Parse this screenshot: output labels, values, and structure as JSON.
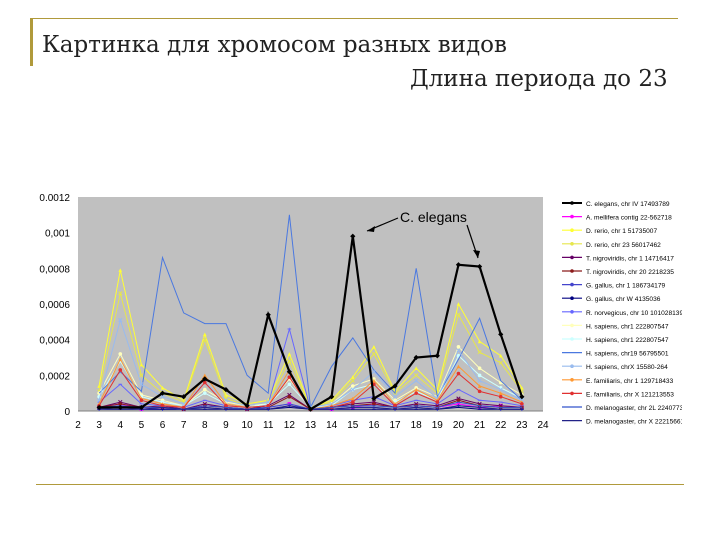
{
  "slide": {
    "title_line1": "Картинка для хромосом разных видов",
    "title_line2": "Длина периода до 23"
  },
  "colors": {
    "frame": "#b09a3b",
    "plot_bg": "#c0c0c0",
    "legend_bg": "#ffffff"
  },
  "chart_data": {
    "type": "line",
    "title": "",
    "xlabel": "",
    "ylabel": "",
    "x": [
      3,
      4,
      5,
      6,
      7,
      8,
      9,
      10,
      11,
      12,
      13,
      14,
      15,
      16,
      17,
      18,
      19,
      20,
      21,
      22,
      23
    ],
    "x_ticks": [
      "2",
      "3",
      "4",
      "5",
      "6",
      "7",
      "8",
      "9",
      "10",
      "11",
      "12",
      "13",
      "14",
      "15",
      "16",
      "17",
      "18",
      "19",
      "20",
      "21",
      "22",
      "23",
      "24"
    ],
    "xlim": [
      2,
      24
    ],
    "ylim": [
      0,
      0.0012
    ],
    "y_ticks": [
      "0",
      "0,0002",
      "0,0004",
      "0,0006",
      "0,0008",
      "0,001",
      "0.0012"
    ],
    "grid": false,
    "legend_position": "right",
    "annotation": "C. elegans",
    "series": [
      {
        "name": "C. elegans, chr IV 17493789",
        "color": "#000000",
        "width": 2.2,
        "marker": "diamond",
        "values": [
          2e-05,
          2e-05,
          2e-05,
          0.0001,
          8e-05,
          0.00018,
          0.00012,
          3e-05,
          0.00054,
          0.00022,
          1e-05,
          8e-05,
          0.00098,
          7e-05,
          0.00014,
          0.0003,
          0.00031,
          0.00082,
          0.00081,
          0.00043,
          8e-05
        ]
      },
      {
        "name": "A. mellifera contig 22-562718",
        "color": "#ff00ff",
        "width": 1,
        "marker": "square",
        "values": [
          2e-05,
          4e-05,
          1e-05,
          2e-05,
          1e-05,
          3e-05,
          2e-05,
          1e-05,
          2e-05,
          4e-05,
          1e-05,
          1e-05,
          2e-05,
          4e-05,
          2e-05,
          3e-05,
          2e-05,
          4e-05,
          2e-05,
          3e-05,
          2e-05
        ]
      },
      {
        "name": "D. rerio, chr 1 51735007",
        "color": "#ffff33",
        "width": 1,
        "marker": "triangle",
        "values": [
          0.00014,
          0.00079,
          0.00026,
          0.00013,
          6e-05,
          0.00043,
          9e-05,
          4e-05,
          6e-05,
          0.00032,
          2e-05,
          6e-05,
          0.00019,
          0.00036,
          0.00011,
          0.00024,
          0.00012,
          0.0006,
          0.00039,
          0.00031,
          0.00013
        ]
      },
      {
        "name": "D. rerio, chr 23 56017462",
        "color": "#e6e64c",
        "width": 1,
        "marker": "x",
        "values": [
          0.00011,
          0.00066,
          0.0002,
          0.0001,
          5e-05,
          0.0004,
          7e-05,
          3e-05,
          5e-05,
          0.00028,
          2e-05,
          5e-05,
          0.00017,
          0.00032,
          0.0001,
          0.0002,
          0.0001,
          0.00054,
          0.00033,
          0.00027,
          0.00011
        ]
      },
      {
        "name": "T. nigroviridis, chr 1 14716417",
        "color": "#660066",
        "width": 1,
        "marker": "x",
        "values": [
          2e-05,
          5e-05,
          2e-05,
          3e-05,
          1e-05,
          4e-05,
          2e-05,
          1e-05,
          3e-05,
          9e-05,
          1e-05,
          2e-05,
          4e-05,
          5e-05,
          2e-05,
          4e-05,
          3e-05,
          7e-05,
          4e-05,
          3e-05,
          2e-05
        ]
      },
      {
        "name": "T. nigroviridis, chr 20 2218235",
        "color": "#8b1a1a",
        "width": 1,
        "marker": "circle",
        "values": [
          2e-05,
          4e-05,
          2e-05,
          2e-05,
          1e-05,
          3e-05,
          2e-05,
          1e-05,
          2e-05,
          8e-05,
          1e-05,
          2e-05,
          3e-05,
          4e-05,
          2e-05,
          3e-05,
          2e-05,
          6e-05,
          3e-05,
          2e-05,
          2e-05
        ]
      },
      {
        "name": "G. gallus, chr 1 186734179",
        "color": "#4444cc",
        "width": 1,
        "marker": "plus",
        "values": [
          1e-05,
          2e-05,
          1e-05,
          1e-05,
          1e-05,
          2e-05,
          1e-05,
          1e-05,
          1e-05,
          3e-05,
          1e-05,
          1e-05,
          2e-05,
          2e-05,
          1e-05,
          2e-05,
          1e-05,
          3e-05,
          2e-05,
          1e-05,
          1e-05
        ]
      },
      {
        "name": "G. gallus, chr W 4135036",
        "color": "#000080",
        "width": 1,
        "marker": "dash",
        "values": [
          1e-05,
          1e-05,
          1e-05,
          1e-05,
          1e-05,
          1e-05,
          1e-05,
          1e-05,
          1e-05,
          2e-05,
          1e-05,
          1e-05,
          1e-05,
          1e-05,
          1e-05,
          1e-05,
          1e-05,
          2e-05,
          1e-05,
          1e-05,
          1e-05
        ]
      },
      {
        "name": "R. norvegicus, chr 10 101028139",
        "color": "#6666ff",
        "width": 1,
        "marker": "dash",
        "values": [
          5e-05,
          0.00015,
          4e-05,
          3e-05,
          2e-05,
          6e-05,
          3e-05,
          2e-05,
          4e-05,
          0.00046,
          1e-05,
          3e-05,
          6e-05,
          8e-05,
          3e-05,
          6e-05,
          4e-05,
          0.00012,
          6e-05,
          5e-05,
          3e-05
        ]
      },
      {
        "name": "H. sapiens, chr1 222807547",
        "color": "#ffffbb",
        "width": 1,
        "marker": "circle",
        "values": [
          0.0001,
          0.00032,
          9e-05,
          6e-05,
          3e-05,
          0.00012,
          5e-05,
          3e-05,
          4e-05,
          0.00018,
          2e-05,
          4e-05,
          0.00014,
          0.00018,
          6e-05,
          0.00013,
          8e-05,
          0.00036,
          0.00024,
          0.00016,
          9e-05
        ]
      },
      {
        "name": "H. sapiens, chr1 222807547",
        "color": "#ccffff",
        "width": 1,
        "marker": "circle",
        "values": [
          8e-05,
          0.00028,
          8e-05,
          5e-05,
          3e-05,
          0.0001,
          4e-05,
          2e-05,
          4e-05,
          0.00015,
          2e-05,
          3e-05,
          0.00012,
          0.00015,
          5e-05,
          0.00011,
          6e-05,
          0.00031,
          0.0002,
          0.00013,
          7e-05
        ]
      },
      {
        "name": "H. sapiens, chr19 56795501",
        "color": "#4a78e0",
        "width": 1,
        "marker": "none",
        "values": [
          0.0001,
          0.00022,
          0.00011,
          0.00086,
          0.00055,
          0.00049,
          0.00049,
          0.0002,
          0.0001,
          0.0011,
          2e-05,
          0.00025,
          0.00041,
          0.00023,
          0.0001,
          0.0008,
          8e-05,
          0.00029,
          0.00052,
          0.00017,
          6e-05
        ]
      },
      {
        "name": "H. sapiens, chrX 15580-264",
        "color": "#99bbee",
        "width": 1,
        "marker": "x",
        "values": [
          6e-05,
          0.00051,
          0.00015,
          8e-05,
          4e-05,
          0.00016,
          6e-05,
          3e-05,
          5e-05,
          0.00022,
          2e-05,
          4e-05,
          0.00012,
          0.00022,
          8e-05,
          0.00017,
          7e-05,
          0.00034,
          0.00017,
          0.00012,
          6e-05
        ]
      },
      {
        "name": "E. familiaris, chr 1 129718433",
        "color": "#ff9933",
        "width": 1,
        "marker": "triangle",
        "values": [
          4e-05,
          0.00029,
          7e-05,
          4e-05,
          2e-05,
          0.0002,
          4e-05,
          2e-05,
          3e-05,
          0.00023,
          1e-05,
          3e-05,
          7e-05,
          0.00017,
          4e-05,
          0.00012,
          6e-05,
          0.00025,
          0.00014,
          0.0001,
          5e-05
        ]
      },
      {
        "name": "E. familiaris, chr X 121213553",
        "color": "#e03030",
        "width": 1,
        "marker": "circle",
        "values": [
          3e-05,
          0.00023,
          6e-05,
          3e-05,
          2e-05,
          0.00016,
          3e-05,
          2e-05,
          3e-05,
          0.00019,
          1e-05,
          2e-05,
          5e-05,
          0.00015,
          3e-05,
          0.0001,
          5e-05,
          0.00021,
          0.00011,
          8e-05,
          4e-05
        ]
      },
      {
        "name": "D. melanogaster, chr 2L 22407735",
        "color": "#3355cc",
        "width": 1,
        "marker": "none",
        "values": [
          2e-05,
          3e-05,
          2e-05,
          2e-05,
          1e-05,
          3e-05,
          2e-05,
          1e-05,
          2e-05,
          4e-05,
          1e-05,
          2e-05,
          3e-05,
          3e-05,
          2e-05,
          3e-05,
          2e-05,
          5e-05,
          3e-05,
          2e-05,
          2e-05
        ]
      },
      {
        "name": "D. melanogaster, chr X 22215661",
        "color": "#222288",
        "width": 1,
        "marker": "none",
        "values": [
          1e-05,
          2e-05,
          1e-05,
          2e-05,
          1e-05,
          2e-05,
          1e-05,
          1e-05,
          1e-05,
          3e-05,
          1e-05,
          1e-05,
          2e-05,
          2e-05,
          1e-05,
          2e-05,
          1e-05,
          3e-05,
          2e-05,
          1e-05,
          1e-05
        ]
      }
    ]
  }
}
